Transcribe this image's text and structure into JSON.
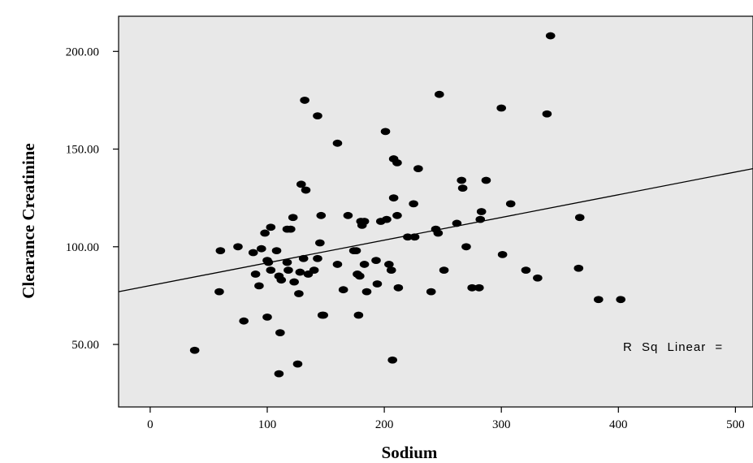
{
  "chart_data": {
    "type": "scatter",
    "title": "",
    "xlabel": "Sodium",
    "ylabel": "Clearance Creatinine",
    "xlim": [
      -27,
      515
    ],
    "ylim": [
      18,
      218
    ],
    "x_ticks": [
      0,
      100,
      200,
      300,
      400,
      500
    ],
    "x_tick_labels": [
      "0",
      "100",
      "200",
      "300",
      "400",
      "500"
    ],
    "y_ticks": [
      50,
      100,
      150,
      200
    ],
    "y_tick_labels": [
      "50.00",
      "100.00",
      "150.00",
      "200.00"
    ],
    "grid": false,
    "plot_background": "#e8e8e8",
    "marker_color": "#000000",
    "annotation": "R Sq Linear =",
    "fit_line": {
      "type": "linear",
      "points": [
        [
          -27,
          77
        ],
        [
          515,
          140
        ]
      ]
    },
    "series": [
      {
        "points": [
          [
            38,
            47
          ],
          [
            59,
            77
          ],
          [
            60,
            98
          ],
          [
            75,
            100
          ],
          [
            80,
            62
          ],
          [
            88,
            97
          ],
          [
            90,
            86
          ],
          [
            93,
            80
          ],
          [
            95,
            99
          ],
          [
            98,
            107
          ],
          [
            100,
            93
          ],
          [
            100,
            64
          ],
          [
            101,
            92
          ],
          [
            103,
            88
          ],
          [
            103,
            110
          ],
          [
            108,
            98
          ],
          [
            110,
            35
          ],
          [
            110,
            85
          ],
          [
            111,
            56
          ],
          [
            112,
            83
          ],
          [
            117,
            92
          ],
          [
            117,
            109
          ],
          [
            118,
            88
          ],
          [
            120,
            109
          ],
          [
            122,
            115
          ],
          [
            123,
            82
          ],
          [
            126,
            40
          ],
          [
            127,
            76
          ],
          [
            128,
            87
          ],
          [
            129,
            132
          ],
          [
            131,
            94
          ],
          [
            132,
            175
          ],
          [
            133,
            129
          ],
          [
            135,
            86
          ],
          [
            140,
            88
          ],
          [
            143,
            167
          ],
          [
            143,
            94
          ],
          [
            145,
            102
          ],
          [
            146,
            116
          ],
          [
            147,
            65
          ],
          [
            148,
            65
          ],
          [
            160,
            153
          ],
          [
            160,
            91
          ],
          [
            165,
            78
          ],
          [
            169,
            116
          ],
          [
            174,
            98
          ],
          [
            176,
            98
          ],
          [
            177,
            86
          ],
          [
            178,
            65
          ],
          [
            179,
            85
          ],
          [
            180,
            113
          ],
          [
            181,
            111
          ],
          [
            183,
            113
          ],
          [
            183,
            91
          ],
          [
            185,
            77
          ],
          [
            193,
            93
          ],
          [
            194,
            81
          ],
          [
            197,
            113
          ],
          [
            201,
            159
          ],
          [
            202,
            114
          ],
          [
            204,
            91
          ],
          [
            206,
            88
          ],
          [
            207,
            42
          ],
          [
            208,
            145
          ],
          [
            208,
            125
          ],
          [
            211,
            143
          ],
          [
            211,
            116
          ],
          [
            212,
            79
          ],
          [
            220,
            105
          ],
          [
            225,
            122
          ],
          [
            226,
            105
          ],
          [
            229,
            140
          ],
          [
            240,
            77
          ],
          [
            244,
            109
          ],
          [
            246,
            107
          ],
          [
            247,
            178
          ],
          [
            251,
            88
          ],
          [
            262,
            112
          ],
          [
            266,
            134
          ],
          [
            267,
            130
          ],
          [
            270,
            100
          ],
          [
            275,
            79
          ],
          [
            281,
            79
          ],
          [
            282,
            114
          ],
          [
            283,
            118
          ],
          [
            287,
            134
          ],
          [
            300,
            171
          ],
          [
            301,
            96
          ],
          [
            308,
            122
          ],
          [
            321,
            88
          ],
          [
            331,
            84
          ],
          [
            339,
            168
          ],
          [
            342,
            208
          ],
          [
            366,
            89
          ],
          [
            367,
            115
          ],
          [
            383,
            73
          ],
          [
            402,
            73
          ]
        ]
      }
    ]
  }
}
